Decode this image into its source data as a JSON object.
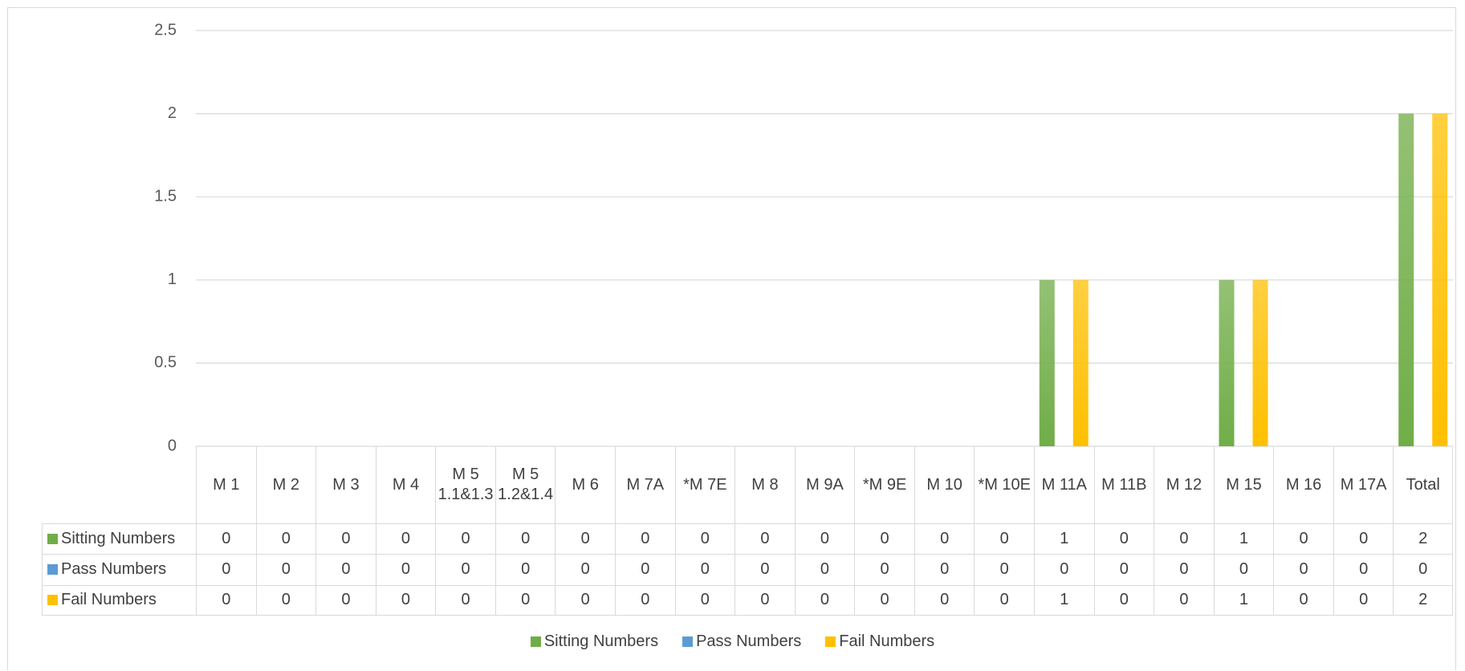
{
  "chart_data": {
    "type": "bar",
    "categories": [
      "M 1",
      "M 2",
      "M 3",
      "M 4",
      "M 5 1.1&1.3",
      "M 5 1.2&1.4",
      "M 6",
      "M 7A",
      "*M 7E",
      "M 8",
      "M 9A",
      "*M 9E",
      "M 10",
      "*M 10E",
      "M 11A",
      "M 11B",
      "M 12",
      "M 15",
      "M 16",
      "M 17A",
      "Total"
    ],
    "series": [
      {
        "name": "Sitting Numbers",
        "color": "#70ad47",
        "values": [
          0,
          0,
          0,
          0,
          0,
          0,
          0,
          0,
          0,
          0,
          0,
          0,
          0,
          0,
          1,
          0,
          0,
          1,
          0,
          0,
          2
        ]
      },
      {
        "name": "Pass Numbers",
        "color": "#5b9bd5",
        "values": [
          0,
          0,
          0,
          0,
          0,
          0,
          0,
          0,
          0,
          0,
          0,
          0,
          0,
          0,
          0,
          0,
          0,
          0,
          0,
          0,
          0
        ]
      },
      {
        "name": "Fail Numbers",
        "color": "#ffc000",
        "values": [
          0,
          0,
          0,
          0,
          0,
          0,
          0,
          0,
          0,
          0,
          0,
          0,
          0,
          0,
          1,
          0,
          0,
          1,
          0,
          0,
          2
        ]
      }
    ],
    "ylim": [
      0,
      2.5
    ],
    "yticks": [
      0,
      0.5,
      1,
      1.5,
      2,
      2.5
    ],
    "grid": true,
    "legend": "bottom",
    "data_table": true
  }
}
